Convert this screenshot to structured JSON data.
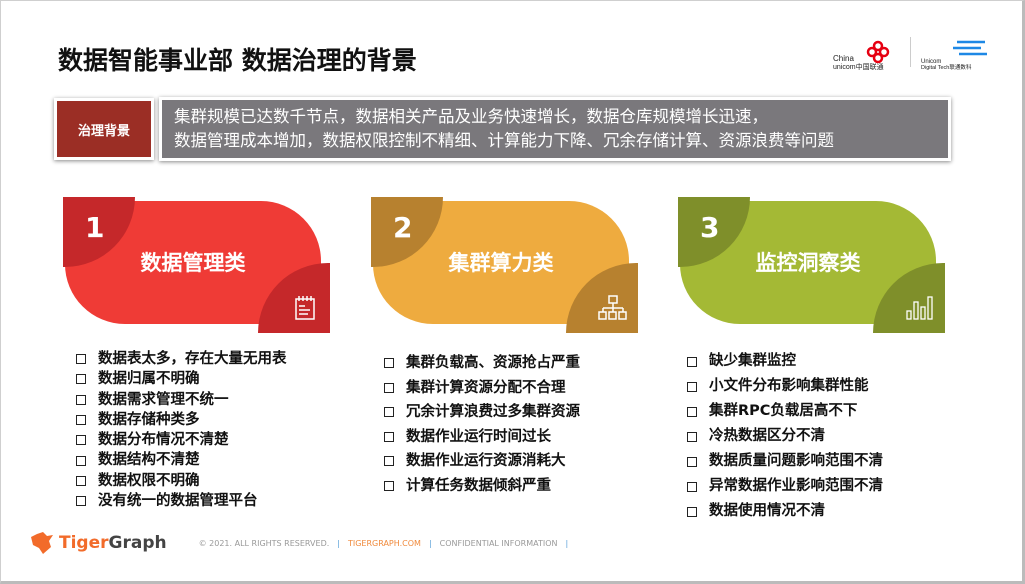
{
  "title": "数据智能事业部 数据治理的背景",
  "logos": {
    "china_unicom": "China unicom中国联通",
    "unicom_digital": "Unicom Digital Tech联通数科"
  },
  "background": {
    "tag": "治理背景",
    "lines": [
      "集群规模已达数千节点，数据相关产品及业务快速增长，数据仓库规模增长迅速，",
      "数据管理成本增加，数据权限控制不精细、计算能力下降、冗余存储计算、资源浪费等问题"
    ]
  },
  "categories": [
    {
      "number": "1",
      "label": "数据管理类",
      "icon": "notepad-icon",
      "color": "#ef3b36",
      "dark": "#c5282a",
      "items": [
        "数据表太多，存在大量无用表",
        "数据归属不明确",
        "数据需求管理不统一",
        "数据存储种类多",
        "数据分布情况不清楚",
        "数据结构不清楚",
        "数据权限不明确",
        "没有统一的数据管理平台"
      ]
    },
    {
      "number": "2",
      "label": "集群算力类",
      "icon": "hierarchy-icon",
      "color": "#eeab3f",
      "dark": "#b7812f",
      "items": [
        "集群负载高、资源抢占严重",
        "集群计算资源分配不合理",
        "冗余计算浪费过多集群资源",
        "数据作业运行时间过长",
        "数据作业运行资源消耗大",
        "计算任务数据倾斜严重"
      ]
    },
    {
      "number": "3",
      "label": "监控洞察类",
      "icon": "bar-chart-icon",
      "color": "#a4b935",
      "dark": "#7f8f2a",
      "items": [
        "缺少集群监控",
        "小文件分布影响集群性能",
        "集群RPC负载居高不下",
        "冷热数据区分不清",
        "数据质量问题影响范围不清",
        "异常数据作业影响范围不清",
        "数据使用情况不清"
      ]
    }
  ],
  "footer": {
    "brand_a": "Tiger",
    "brand_b": "Graph",
    "copyright": "© 2021. ALL RIGHTS RESERVED.",
    "site": "TIGERGRAPH.COM",
    "confidential": "CONFIDENTIAL INFORMATION",
    "sep": "|"
  }
}
